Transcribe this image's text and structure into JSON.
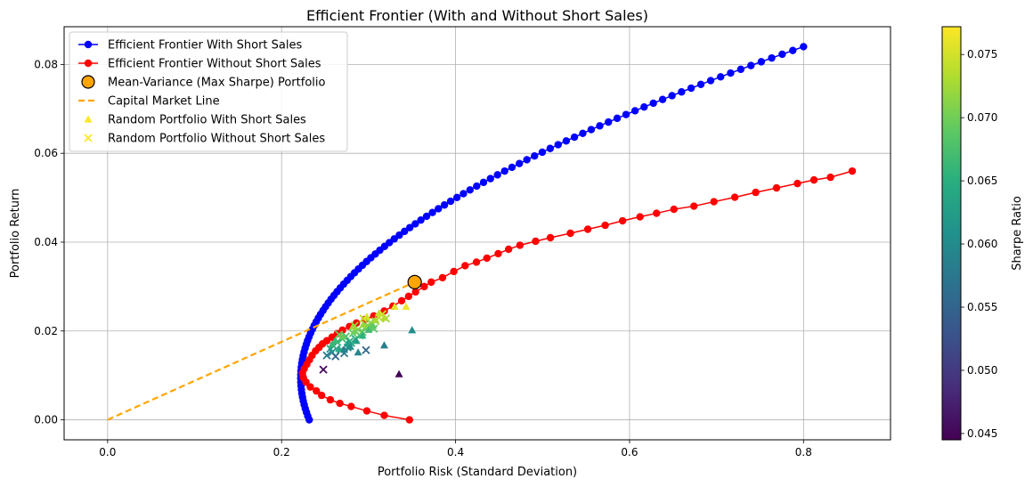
{
  "chart_data": {
    "type": "scatter",
    "title": "Efficient Frontier (With and Without Short Sales)",
    "xlabel": "Portfolio Risk (Standard Deviation)",
    "ylabel": "Portfolio Return",
    "xlim": [
      -0.05,
      0.9
    ],
    "ylim": [
      -0.0045,
      0.0885
    ],
    "grid": true,
    "legend_position": "top-left",
    "x_ticks": [
      0.0,
      0.2,
      0.4,
      0.6,
      0.8
    ],
    "x_tick_labels": [
      "0.0",
      "0.2",
      "0.4",
      "0.6",
      "0.8"
    ],
    "y_ticks": [
      0.0,
      0.02,
      0.04,
      0.06,
      0.08
    ],
    "y_tick_labels": [
      "0.00",
      "0.02",
      "0.04",
      "0.06",
      "0.08"
    ],
    "colorbar": {
      "label": "Sharpe Ratio",
      "colormap": "viridis",
      "range": [
        0.0445,
        0.0772
      ],
      "ticks": [
        0.045,
        0.05,
        0.055,
        0.06,
        0.065,
        0.07,
        0.075
      ],
      "tick_labels": [
        "0.045",
        "0.050",
        "0.055",
        "0.060",
        "0.065",
        "0.070",
        "0.075"
      ]
    },
    "series": [
      {
        "name": "Efficient Frontier With Short Sales",
        "kind": "line-markers",
        "color": "#0000ff",
        "frontier": {
          "min_risk": 0.222,
          "min_return": 0.0094,
          "a": 0.00258,
          "return_start": 0.0,
          "return_end": 0.084,
          "points": 100
        },
        "end_point": [
          0.8,
          0.084
        ]
      },
      {
        "name": "Efficient Frontier Without Short Sales",
        "kind": "line-markers",
        "color": "#ff0000",
        "points": [
          [
            0.347,
            0.0
          ],
          [
            0.318,
            0.001
          ],
          [
            0.298,
            0.002
          ],
          [
            0.28,
            0.003
          ],
          [
            0.267,
            0.0037
          ],
          [
            0.256,
            0.0045
          ],
          [
            0.246,
            0.0055
          ],
          [
            0.24,
            0.0065
          ],
          [
            0.233,
            0.0074
          ],
          [
            0.228,
            0.0085
          ],
          [
            0.225,
            0.0095
          ],
          [
            0.224,
            0.0105
          ],
          [
            0.226,
            0.0115
          ],
          [
            0.229,
            0.0125
          ],
          [
            0.232,
            0.0135
          ],
          [
            0.235,
            0.0145
          ],
          [
            0.239,
            0.0155
          ],
          [
            0.243,
            0.0163
          ],
          [
            0.247,
            0.0171
          ],
          [
            0.252,
            0.0178
          ],
          [
            0.258,
            0.0186
          ],
          [
            0.264,
            0.0194
          ],
          [
            0.27,
            0.0202
          ],
          [
            0.278,
            0.021
          ],
          [
            0.286,
            0.0218
          ],
          [
            0.296,
            0.0226
          ],
          [
            0.306,
            0.0234
          ],
          [
            0.318,
            0.0245
          ],
          [
            0.328,
            0.0256
          ],
          [
            0.338,
            0.0268
          ],
          [
            0.346,
            0.0278
          ],
          [
            0.354,
            0.0288
          ],
          [
            0.364,
            0.03
          ],
          [
            0.372,
            0.031
          ],
          [
            0.385,
            0.032
          ],
          [
            0.398,
            0.0334
          ],
          [
            0.411,
            0.0347
          ],
          [
            0.424,
            0.0355
          ],
          [
            0.436,
            0.0364
          ],
          [
            0.449,
            0.0374
          ],
          [
            0.461,
            0.0384
          ],
          [
            0.474,
            0.0393
          ],
          [
            0.492,
            0.0402
          ],
          [
            0.509,
            0.041
          ],
          [
            0.532,
            0.042
          ],
          [
            0.552,
            0.0429
          ],
          [
            0.572,
            0.0438
          ],
          [
            0.592,
            0.0448
          ],
          [
            0.612,
            0.0457
          ],
          [
            0.631,
            0.0465
          ],
          [
            0.651,
            0.0474
          ],
          [
            0.674,
            0.0481
          ],
          [
            0.697,
            0.0491
          ],
          [
            0.721,
            0.0501
          ],
          [
            0.745,
            0.0512
          ],
          [
            0.769,
            0.0522
          ],
          [
            0.793,
            0.0532
          ],
          [
            0.812,
            0.054
          ],
          [
            0.831,
            0.0546
          ],
          [
            0.856,
            0.056
          ]
        ]
      },
      {
        "name": "Mean-Variance (Max Sharpe) Portfolio",
        "kind": "marker",
        "color": "#ffa500",
        "points": [
          [
            0.353,
            0.031
          ]
        ]
      },
      {
        "name": "Capital Market Line",
        "kind": "dashed-line",
        "color": "#ffa500",
        "points": [
          [
            0.0,
            0.0
          ],
          [
            0.353,
            0.031
          ]
        ]
      },
      {
        "name": "Random Portfolio With Short Sales",
        "kind": "triangle-markers",
        "colored_by": "Sharpe Ratio",
        "points": [
          [
            0.343,
            0.0255,
            0.0765
          ],
          [
            0.33,
            0.0255,
            0.0758
          ],
          [
            0.35,
            0.0202,
            0.0604
          ],
          [
            0.318,
            0.0168,
            0.0582
          ],
          [
            0.335,
            0.0103,
            0.045
          ],
          [
            0.288,
            0.0152,
            0.0595
          ],
          [
            0.3,
            0.0203,
            0.067
          ],
          [
            0.293,
            0.019,
            0.0655
          ],
          [
            0.305,
            0.0212,
            0.069
          ],
          [
            0.27,
            0.0188,
            0.0695
          ],
          [
            0.262,
            0.0178,
            0.0665
          ],
          [
            0.276,
            0.0172,
            0.0625
          ],
          [
            0.284,
            0.02,
            0.07
          ],
          [
            0.298,
            0.0232,
            0.0752
          ],
          [
            0.312,
            0.024,
            0.0745
          ],
          [
            0.266,
            0.016,
            0.064
          ],
          [
            0.279,
            0.0165,
            0.0605
          ],
          [
            0.258,
            0.017,
            0.066
          ],
          [
            0.294,
            0.0215,
            0.072
          ],
          [
            0.308,
            0.0225,
            0.0728
          ],
          [
            0.272,
            0.0158,
            0.059
          ],
          [
            0.286,
            0.0178,
            0.063
          ],
          [
            0.318,
            0.023,
            0.0735
          ],
          [
            0.282,
            0.021,
            0.0722
          ]
        ]
      },
      {
        "name": "Random Portfolio Without Short Sales",
        "kind": "x-markers",
        "colored_by": "Sharpe Ratio",
        "points": [
          [
            0.248,
            0.0113,
            0.0455
          ],
          [
            0.252,
            0.0145,
            0.0575
          ],
          [
            0.258,
            0.0152,
            0.06
          ],
          [
            0.262,
            0.0143,
            0.0552
          ],
          [
            0.268,
            0.0157,
            0.059
          ],
          [
            0.272,
            0.015,
            0.0575
          ],
          [
            0.276,
            0.0163,
            0.0608
          ],
          [
            0.28,
            0.0173,
            0.0625
          ],
          [
            0.285,
            0.0182,
            0.0645
          ],
          [
            0.29,
            0.019,
            0.0665
          ],
          [
            0.293,
            0.0198,
            0.0682
          ],
          [
            0.297,
            0.0157,
            0.0552
          ],
          [
            0.3,
            0.021,
            0.07
          ],
          [
            0.304,
            0.0215,
            0.071
          ],
          [
            0.308,
            0.0222,
            0.072
          ],
          [
            0.312,
            0.023,
            0.0735
          ],
          [
            0.316,
            0.0238,
            0.0748
          ],
          [
            0.32,
            0.0228,
            0.0722
          ],
          [
            0.264,
            0.0175,
            0.065
          ],
          [
            0.27,
            0.0182,
            0.0665
          ],
          [
            0.274,
            0.0188,
            0.068
          ],
          [
            0.282,
            0.0195,
            0.069
          ],
          [
            0.288,
            0.0203,
            0.07
          ],
          [
            0.296,
            0.0208,
            0.0705
          ],
          [
            0.302,
            0.0218,
            0.0712
          ],
          [
            0.278,
            0.0176,
            0.064
          ],
          [
            0.26,
            0.0166,
            0.063
          ],
          [
            0.294,
            0.0228,
            0.0742
          ],
          [
            0.306,
            0.0205,
            0.0688
          ],
          [
            0.284,
            0.0212,
            0.0718
          ],
          [
            0.266,
            0.0192,
            0.0695
          ],
          [
            0.256,
            0.016,
            0.062
          ]
        ]
      }
    ]
  }
}
